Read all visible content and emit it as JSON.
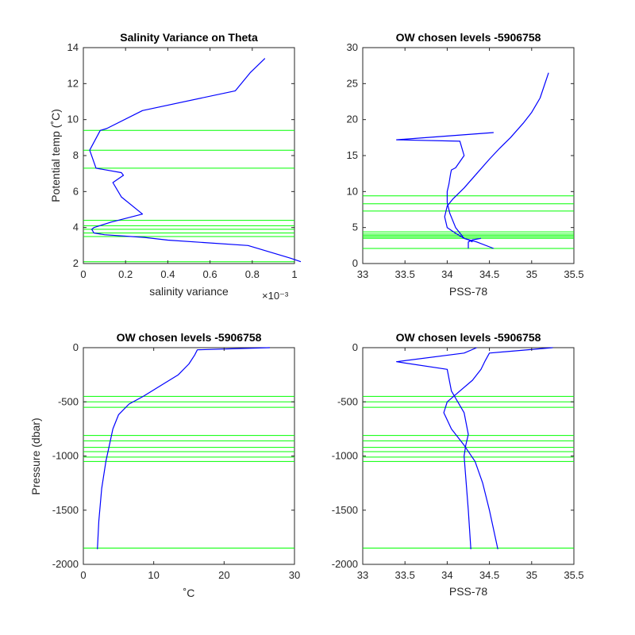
{
  "colors": {
    "profile": "#0000ff",
    "level": "#00ff00",
    "axis": "#262626"
  },
  "chart_data": [
    {
      "type": "line",
      "title": "Salinity Variance on Theta",
      "xlabel": "salinity variance",
      "xscale_note": "×10⁻³",
      "ylabel": "Potential temp (˚C)",
      "xlim": [
        0,
        0.001
      ],
      "ylim": [
        2,
        14
      ],
      "xticks": [
        0,
        0.0002,
        0.0004,
        0.0006,
        0.0008,
        0.001
      ],
      "xticklabels": [
        "0",
        "0.2",
        "0.4",
        "0.6",
        "0.8",
        "1"
      ],
      "yticks": [
        2,
        4,
        6,
        8,
        10,
        12,
        14
      ],
      "yticklabels": [
        "2",
        "4",
        "6",
        "8",
        "10",
        "12",
        "14"
      ],
      "series": [
        {
          "x": [
            0.00103,
            0.00098,
            0.00078,
            0.0004,
            0.00029,
            0.0001,
            5e-05,
            4e-05,
            5e-05,
            0.00013,
            0.00028,
            0.00018,
            0.00014,
            0.00019,
            0.00018,
            6e-05,
            3e-05,
            8e-05,
            0.00011,
            0.00028,
            0.00072,
            0.00079,
            0.00086
          ],
          "y": [
            2.1,
            2.3,
            3.0,
            3.3,
            3.45,
            3.6,
            3.7,
            3.9,
            4.0,
            4.3,
            4.75,
            5.7,
            6.5,
            6.9,
            7.05,
            7.3,
            8.3,
            9.4,
            9.5,
            10.5,
            11.6,
            12.6,
            13.4
          ]
        }
      ],
      "levels_y": [
        2.1,
        3.5,
        3.7,
        3.9,
        4.1,
        4.4,
        7.3,
        8.3,
        9.4
      ]
    },
    {
      "type": "line",
      "title": "OW chosen levels -5906758",
      "xlabel": "PSS-78",
      "ylabel": "",
      "xlim": [
        33,
        35.5
      ],
      "ylim": [
        0,
        30
      ],
      "xticks": [
        33,
        33.5,
        34,
        34.5,
        35,
        35.5
      ],
      "xticklabels": [
        "33",
        "33.5",
        "34",
        "34.5",
        "35",
        "35.5"
      ],
      "yticks": [
        0,
        5,
        10,
        15,
        20,
        25,
        30
      ],
      "yticklabels": [
        "0",
        "5",
        "10",
        "15",
        "20",
        "25",
        "30"
      ],
      "series": [
        {
          "x": [
            34.3,
            34.25,
            34.2,
            34.1,
            34.0,
            33.97,
            34.0,
            34.07,
            34.2,
            34.35,
            34.5,
            34.62,
            34.75,
            34.9,
            35.0,
            35.1,
            35.2
          ],
          "y": [
            3.0,
            3.3,
            3.5,
            4.2,
            5.0,
            6.5,
            8.0,
            9.0,
            10.5,
            12.5,
            14.5,
            16.0,
            17.5,
            19.5,
            21.0,
            23.0,
            26.5
          ]
        },
        {
          "x": [
            34.55,
            34.35,
            34.2,
            34.1,
            34.03,
            34.0,
            34.0,
            34.02,
            34.04,
            34.05,
            34.1,
            34.2,
            34.15,
            33.4,
            34.55
          ],
          "y": [
            2.1,
            3.0,
            3.5,
            5.0,
            7.0,
            8.5,
            10.0,
            11.0,
            12.5,
            13.0,
            13.3,
            15.0,
            17.0,
            17.2,
            18.2
          ]
        },
        {
          "x": [
            34.25,
            34.25,
            34.3,
            34.4
          ],
          "y": [
            2.1,
            3.0,
            3.3,
            3.5
          ]
        }
      ],
      "levels_y": [
        2.1,
        3.5,
        3.7,
        3.9,
        4.1,
        4.4,
        7.3,
        8.3,
        9.4
      ]
    },
    {
      "type": "line",
      "title": "OW chosen levels -5906758",
      "xlabel": "˚C",
      "ylabel": "Pressure (dbar)",
      "xlim": [
        0,
        30
      ],
      "ylim": [
        -2000,
        0
      ],
      "xticks": [
        0,
        10,
        20,
        30
      ],
      "xticklabels": [
        "0",
        "10",
        "20",
        "30"
      ],
      "yticks": [
        -2000,
        -1500,
        -1000,
        -500,
        0
      ],
      "yticklabels": [
        "-2000",
        "-1500",
        "-1000",
        "-500",
        "0"
      ],
      "series": [
        {
          "x": [
            2.0,
            2.2,
            2.6,
            3.2,
            3.7,
            4.2,
            5.0,
            6.5,
            8.5,
            11.0,
            13.5,
            15.0,
            15.8,
            16.2,
            26.5
          ],
          "y": [
            -1860,
            -1600,
            -1300,
            -1050,
            -900,
            -750,
            -620,
            -520,
            -450,
            -350,
            -250,
            -150,
            -70,
            -20,
            0
          ]
        }
      ],
      "levels_y": [
        -450,
        -500,
        -550,
        -810,
        -860,
        -920,
        -960,
        -1010,
        -1050,
        -1850
      ]
    },
    {
      "type": "line",
      "title": "OW chosen levels -5906758",
      "xlabel": "PSS-78",
      "ylabel": "",
      "xlim": [
        33,
        35.5
      ],
      "ylim": [
        -2000,
        0
      ],
      "xticks": [
        33,
        33.5,
        34,
        34.5,
        35,
        35.5
      ],
      "xticklabels": [
        "33",
        "33.5",
        "34",
        "34.5",
        "35",
        "35.5"
      ],
      "yticks": [
        -2000,
        -1500,
        -1000,
        -500,
        0
      ],
      "yticklabels": [
        "-2000",
        "-1500",
        "-1000",
        "-500",
        "0"
      ],
      "series": [
        {
          "x": [
            34.6,
            34.5,
            34.42,
            34.33,
            34.2,
            34.05,
            33.96,
            34.0,
            34.15,
            34.3,
            34.4,
            34.45,
            34.5,
            35.25
          ],
          "y": [
            -1860,
            -1500,
            -1250,
            -1050,
            -900,
            -750,
            -600,
            -500,
            -400,
            -300,
            -200,
            -120,
            -50,
            0
          ]
        },
        {
          "x": [
            34.28,
            34.25,
            34.22,
            34.2,
            34.22,
            34.25,
            34.2,
            34.05,
            34.0,
            33.4,
            34.2,
            34.35
          ],
          "y": [
            -1860,
            -1500,
            -1200,
            -1000,
            -900,
            -800,
            -600,
            -400,
            -200,
            -130,
            -50,
            0
          ]
        }
      ],
      "levels_y": [
        -450,
        -500,
        -550,
        -810,
        -860,
        -920,
        -960,
        -1010,
        -1050,
        -1850
      ]
    }
  ]
}
